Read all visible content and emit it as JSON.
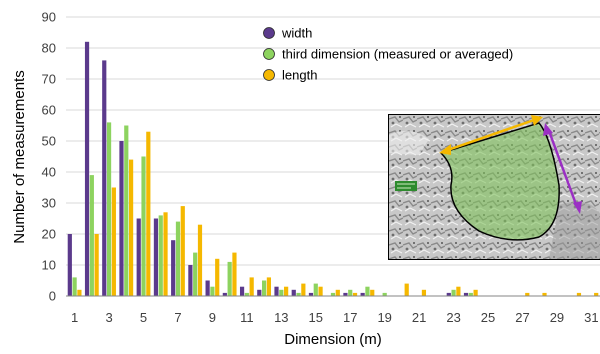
{
  "chart_data": {
    "type": "bar",
    "xlabel": "Dimension (m)",
    "ylabel": "Number of measurements",
    "ylim": [
      0,
      90
    ],
    "yticks": [
      0,
      10,
      20,
      30,
      40,
      50,
      60,
      70,
      80,
      90
    ],
    "x": [
      1,
      2,
      3,
      4,
      5,
      6,
      7,
      8,
      9,
      10,
      11,
      12,
      13,
      14,
      15,
      16,
      17,
      18,
      19,
      20,
      21,
      22,
      23,
      24,
      25,
      26,
      27,
      28,
      29,
      30,
      31
    ],
    "xtick_labels": [
      "1",
      "3",
      "5",
      "7",
      "9",
      "11",
      "13",
      "15",
      "17",
      "19",
      "21",
      "23",
      "25",
      "27",
      "29",
      "31"
    ],
    "grid": "horizontal",
    "legend_position": "top-right",
    "series": [
      {
        "name": "width",
        "color": "#5b3a8c",
        "values": [
          20,
          82,
          76,
          50,
          25,
          25,
          18,
          10,
          5,
          1,
          3,
          2,
          3,
          2,
          1,
          0,
          1,
          1,
          0,
          0,
          0,
          0,
          1,
          1,
          0,
          0,
          0,
          0,
          0,
          0,
          0
        ]
      },
      {
        "name": "third dimension (measured or averaged)",
        "color": "#8dd35f",
        "values": [
          6,
          39,
          56,
          55,
          45,
          26,
          24,
          14,
          3,
          11,
          1,
          5,
          2,
          1,
          4,
          1,
          2,
          3,
          1,
          0,
          0,
          0,
          2,
          1,
          0,
          0,
          0,
          0,
          0,
          0,
          0
        ]
      },
      {
        "name": "length",
        "color": "#f5b800",
        "values": [
          2,
          20,
          35,
          44,
          53,
          27,
          29,
          23,
          12,
          14,
          6,
          6,
          3,
          4,
          3,
          2,
          1,
          2,
          0,
          4,
          2,
          0,
          3,
          2,
          0,
          0,
          1,
          1,
          0,
          1,
          1
        ]
      }
    ]
  }
}
